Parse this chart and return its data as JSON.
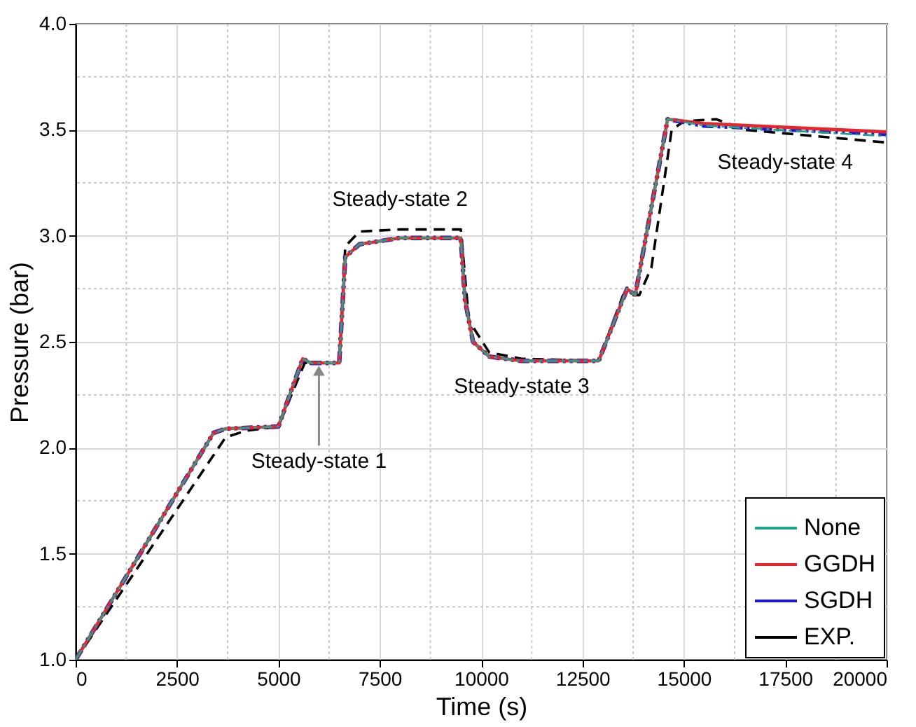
{
  "chart_data": {
    "type": "line",
    "xlabel": "Time (s)",
    "ylabel": "Pressure (bar)",
    "xlim": [
      0,
      20000
    ],
    "ylim": [
      1.0,
      4.0
    ],
    "xticks": [
      0,
      {
        "value": 1250,
        "label": null
      },
      2500,
      {
        "value": 3750,
        "label": null
      },
      5000,
      {
        "value": 6250,
        "label": null
      },
      7500,
      {
        "value": 8750,
        "label": null
      },
      10000,
      {
        "value": 11250,
        "label": null
      },
      12500,
      {
        "value": 13750,
        "label": null
      },
      15000,
      {
        "value": 16250,
        "label": null
      },
      17500,
      {
        "value": 18750,
        "label": null
      },
      20000
    ],
    "yticks": [
      {
        "value": 1.0,
        "label": "1.0"
      },
      {
        "value": 1.25,
        "label": null
      },
      {
        "value": 1.5,
        "label": "1.5"
      },
      {
        "value": 1.75,
        "label": null
      },
      {
        "value": 2.0,
        "label": "2.0"
      },
      {
        "value": 2.25,
        "label": null
      },
      {
        "value": 2.5,
        "label": "2.5"
      },
      {
        "value": 2.75,
        "label": null
      },
      {
        "value": 3.0,
        "label": "3.0"
      },
      {
        "value": 3.25,
        "label": null
      },
      {
        "value": 3.5,
        "label": "3.5"
      },
      {
        "value": 3.75,
        "label": null
      },
      {
        "value": 4.0,
        "label": "4.0"
      }
    ],
    "grid": true,
    "legend": "bottom right",
    "marker": "none",
    "series": [
      {
        "name": "None",
        "color": "#1aa58a",
        "line_style": "dashdot",
        "x": [
          0,
          3400,
          3700,
          5000,
          5600,
          5800,
          6500,
          6650,
          7000,
          8000,
          9500,
          9600,
          9800,
          10200,
          11000,
          12900,
          13600,
          13800,
          14600,
          15500,
          20000
        ],
        "values": [
          1.0,
          2.07,
          2.09,
          2.1,
          2.42,
          2.4,
          2.4,
          2.9,
          2.96,
          2.99,
          2.99,
          2.7,
          2.5,
          2.43,
          2.41,
          2.41,
          2.75,
          2.72,
          3.55,
          3.52,
          3.47
        ]
      },
      {
        "name": "GGDH",
        "color": "#e8262a",
        "line_style": "solid",
        "x": [
          0,
          3400,
          3700,
          5000,
          5600,
          5800,
          6500,
          6650,
          7000,
          8000,
          9500,
          9600,
          9800,
          10200,
          11000,
          12900,
          13600,
          13800,
          14600,
          15500,
          20000
        ],
        "values": [
          1.0,
          2.07,
          2.09,
          2.1,
          2.42,
          2.4,
          2.4,
          2.9,
          2.96,
          2.99,
          2.99,
          2.7,
          2.5,
          2.43,
          2.41,
          2.41,
          2.75,
          2.72,
          3.55,
          3.53,
          3.49
        ]
      },
      {
        "name": "SGDH",
        "color": "#1a1adc",
        "line_style": "dashdotdot",
        "x": [
          0,
          3400,
          3700,
          5000,
          5600,
          5800,
          6500,
          6650,
          7000,
          8000,
          9500,
          9600,
          9800,
          10200,
          11000,
          12900,
          13600,
          13800,
          14600,
          15500,
          20000
        ],
        "values": [
          1.0,
          2.07,
          2.09,
          2.1,
          2.42,
          2.4,
          2.4,
          2.9,
          2.96,
          2.99,
          2.99,
          2.7,
          2.5,
          2.43,
          2.41,
          2.41,
          2.75,
          2.72,
          3.55,
          3.52,
          3.48
        ]
      },
      {
        "name": "EXP.",
        "color": "#000000",
        "line_style": "dashed",
        "x": [
          0,
          3700,
          4200,
          5000,
          5650,
          6500,
          6650,
          7000,
          8000,
          9500,
          9700,
          10200,
          11000,
          12900,
          13500,
          13900,
          14200,
          14700,
          15000,
          15800,
          16500,
          20000
        ],
        "values": [
          1.0,
          2.05,
          2.08,
          2.1,
          2.4,
          2.4,
          2.95,
          3.02,
          3.03,
          3.03,
          2.6,
          2.45,
          2.42,
          2.41,
          2.72,
          2.72,
          2.85,
          3.5,
          3.54,
          3.55,
          3.5,
          3.44
        ]
      }
    ],
    "annotations": [
      {
        "text": "Steady-state 1",
        "x": 6000,
        "y": 2.4
      },
      {
        "text": "Steady-state 2",
        "x": 8000,
        "y": 3.03
      },
      {
        "text": "Steady-state 3",
        "x": 11000,
        "y": 2.41
      },
      {
        "text": "Steady-state 4",
        "x": 17500,
        "y": 3.48
      }
    ]
  }
}
